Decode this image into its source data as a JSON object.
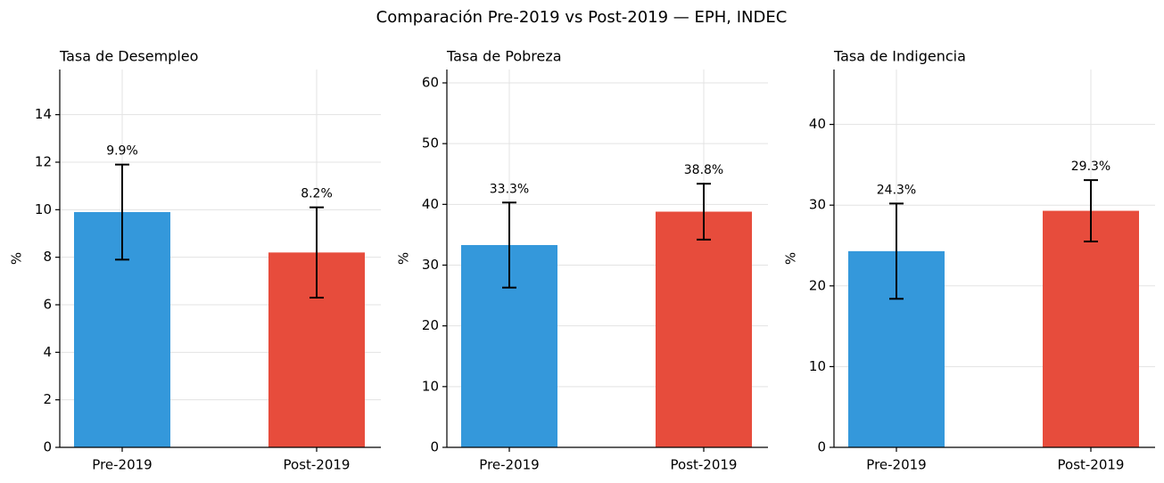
{
  "title": "Comparación Pre-2019 vs Post-2019 — EPH, INDEC",
  "chart_data": [
    {
      "type": "bar",
      "title": "Tasa de Desempleo",
      "ylabel": "%",
      "categories": [
        "Pre-2019",
        "Post-2019"
      ],
      "values": [
        9.9,
        8.2
      ],
      "errors": [
        2.0,
        1.9
      ],
      "value_labels": [
        "9.9%",
        "8.2%"
      ],
      "colors": [
        "#3498db",
        "#e74c3c"
      ],
      "ylim": [
        0,
        15.9
      ],
      "yticks": [
        0,
        2,
        4,
        6,
        8,
        10,
        12,
        14
      ],
      "grid": true
    },
    {
      "type": "bar",
      "title": "Tasa de Pobreza",
      "ylabel": "%",
      "categories": [
        "Pre-2019",
        "Post-2019"
      ],
      "values": [
        33.3,
        38.8
      ],
      "errors": [
        7.0,
        4.6
      ],
      "value_labels": [
        "33.3%",
        "38.8%"
      ],
      "colors": [
        "#3498db",
        "#e74c3c"
      ],
      "ylim": [
        0,
        62.2
      ],
      "yticks": [
        0,
        10,
        20,
        30,
        40,
        50,
        60
      ],
      "grid": true
    },
    {
      "type": "bar",
      "title": "Tasa de Indigencia",
      "ylabel": "%",
      "categories": [
        "Pre-2019",
        "Post-2019"
      ],
      "values": [
        24.3,
        29.3
      ],
      "errors": [
        5.9,
        3.8
      ],
      "value_labels": [
        "24.3%",
        "29.3%"
      ],
      "colors": [
        "#3498db",
        "#e74c3c"
      ],
      "ylim": [
        0,
        46.8
      ],
      "yticks": [
        0,
        10,
        20,
        30,
        40
      ],
      "grid": true
    }
  ]
}
